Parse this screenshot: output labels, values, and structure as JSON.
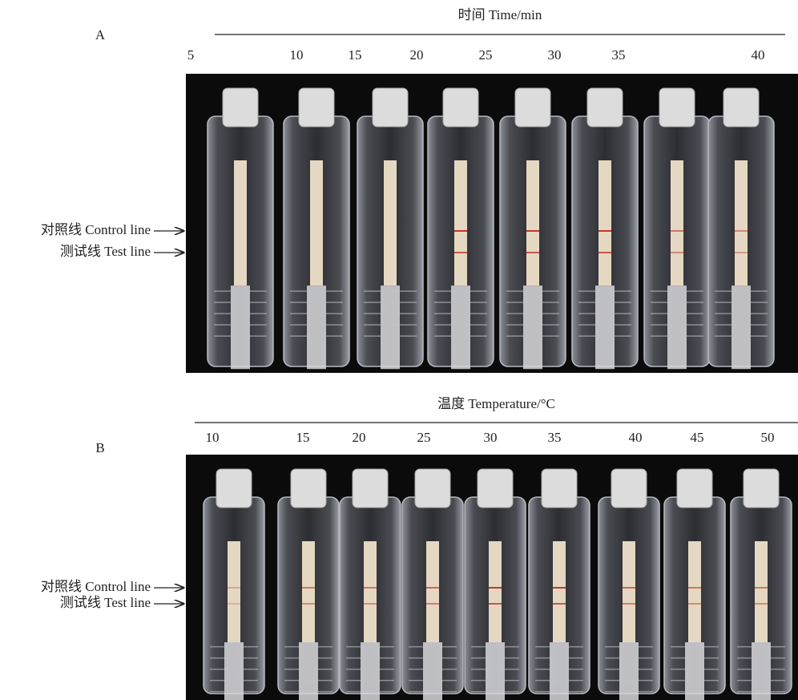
{
  "panels": [
    {
      "label": "A",
      "axis_title": "时间 Time/min",
      "ticks": [
        5,
        10,
        15,
        20,
        25,
        30,
        35,
        40
      ],
      "control_line_label": "对照线 Control line",
      "test_line_label": "测试线 Test line"
    },
    {
      "label": "B",
      "axis_title": "温度 Temperature/°C",
      "ticks": [
        10,
        15,
        20,
        25,
        30,
        35,
        40,
        45,
        50
      ],
      "control_line_label": "对照线 Control line",
      "test_line_label": "测试线 Test line"
    }
  ]
}
